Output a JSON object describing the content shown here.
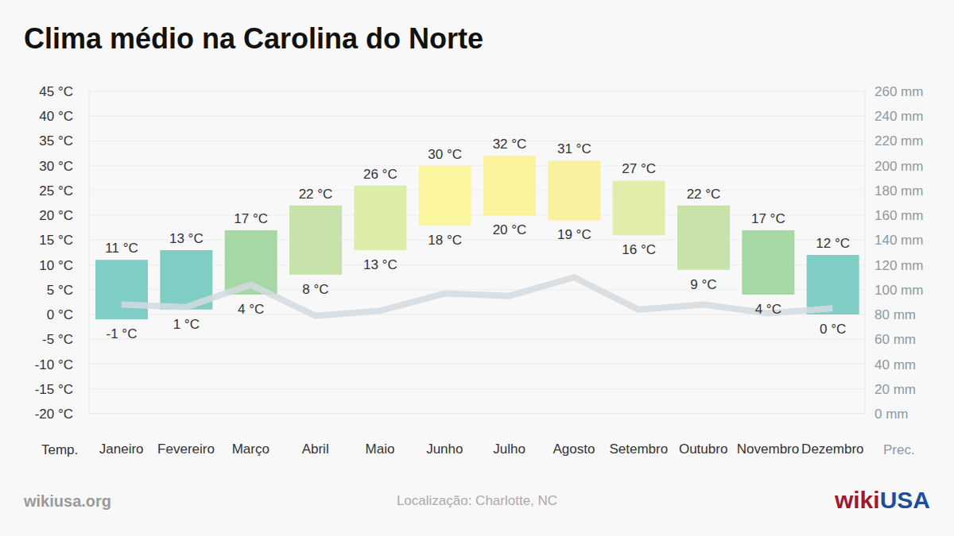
{
  "chart_data": {
    "type": "bar",
    "title": "Clima médio na Carolina do Norte",
    "ylabel": "Temp.",
    "y2label": "Prec.",
    "categories": [
      "Janeiro",
      "Fevereiro",
      "Março",
      "Abril",
      "Maio",
      "Junho",
      "Julho",
      "Agosto",
      "Setembro",
      "Outubro",
      "Novembro",
      "Dezembro"
    ],
    "series": [
      {
        "type": "bar",
        "data_labels": true,
        "values": [
          [
            -1,
            11
          ],
          [
            1,
            13
          ],
          [
            4,
            17
          ],
          [
            8,
            22
          ],
          [
            13,
            26
          ],
          [
            18,
            30
          ],
          [
            20,
            32
          ],
          [
            19,
            31
          ],
          [
            16,
            27
          ],
          [
            9,
            22
          ],
          [
            4,
            17
          ],
          [
            0,
            12
          ]
        ],
        "value_labels": [
          [
            "-1 °C",
            "11 °C"
          ],
          [
            "1 °C",
            "13 °C"
          ],
          [
            "4 °C",
            "17 °C"
          ],
          [
            "8 °C",
            "22 °C"
          ],
          [
            "13 °C",
            "26 °C"
          ],
          [
            "18 °C",
            "30 °C"
          ],
          [
            "20 °C",
            "32 °C"
          ],
          [
            "19 °C",
            "31 °C"
          ],
          [
            "16 °C",
            "27 °C"
          ],
          [
            "9 °C",
            "22 °C"
          ],
          [
            "4 °C",
            "17 °C"
          ],
          [
            "0 °C",
            "12 °C"
          ]
        ],
        "colors": [
          "#7fcdc5",
          "#80cdc4",
          "#a6d8a6",
          "#c8e3a9",
          "#dcedaa",
          "#fbf5a0",
          "#fbf29c",
          "#f8f19e",
          "#e3edaa",
          "#c8e3a9",
          "#a6d8a6",
          "#7fcdc5"
        ]
      },
      {
        "type": "line",
        "axis": "y2",
        "color": "#d3dadf",
        "values": [
          88,
          86,
          104,
          79,
          83,
          97,
          95,
          110,
          84,
          88,
          81,
          85
        ]
      }
    ],
    "ylim": [
      -20,
      45
    ],
    "yticks": [
      {
        "value": -20,
        "label": "-20 °C"
      },
      {
        "value": -15,
        "label": "-15 °C"
      },
      {
        "value": -10,
        "label": "-10 °C"
      },
      {
        "value": -5,
        "label": "-5 °C"
      },
      {
        "value": 0,
        "label": "0 °C"
      },
      {
        "value": 5,
        "label": "5 °C"
      },
      {
        "value": 10,
        "label": "10 °C"
      },
      {
        "value": 15,
        "label": "15 °C"
      },
      {
        "value": 20,
        "label": "20 °C"
      },
      {
        "value": 25,
        "label": "25 °C"
      },
      {
        "value": 30,
        "label": "30 °C"
      },
      {
        "value": 35,
        "label": "35 °C"
      },
      {
        "value": 40,
        "label": "40 °C"
      },
      {
        "value": 45,
        "label": "45 °C"
      }
    ],
    "y2lim": [
      0,
      260
    ],
    "y2ticks": [
      {
        "value": 0,
        "label": "0 mm"
      },
      {
        "value": 20,
        "label": "20 mm"
      },
      {
        "value": 40,
        "label": "40 mm"
      },
      {
        "value": 60,
        "label": "60 mm"
      },
      {
        "value": 80,
        "label": "80 mm"
      },
      {
        "value": 100,
        "label": "100 mm"
      },
      {
        "value": 120,
        "label": "120 mm"
      },
      {
        "value": 140,
        "label": "140 mm"
      },
      {
        "value": 160,
        "label": "160 mm"
      },
      {
        "value": 180,
        "label": "180 mm"
      },
      {
        "value": 200,
        "label": "200 mm"
      },
      {
        "value": 220,
        "label": "220 mm"
      },
      {
        "value": 240,
        "label": "240 mm"
      },
      {
        "value": 260,
        "label": "260 mm"
      }
    ],
    "grid": true,
    "source": "wikiusa.org",
    "note": "Localização: Charlotte, NC",
    "logo": [
      "wiki",
      "USA"
    ]
  }
}
